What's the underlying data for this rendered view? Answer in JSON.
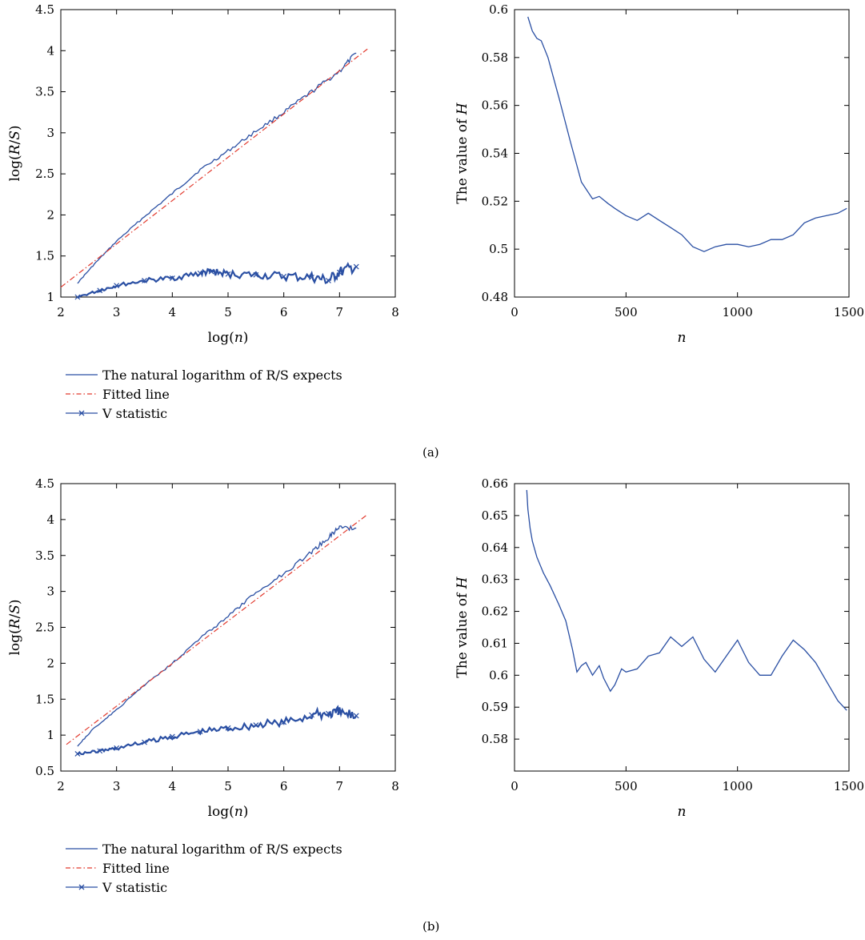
{
  "legend": {
    "rs": "The natural logarithm of R/S expects",
    "fitted": "Fitted line",
    "v": "V statistic"
  },
  "colors": {
    "blue": "#2a4fa3",
    "red": "#e23a2e"
  },
  "captions": {
    "a": "(a)",
    "b": "(b)"
  },
  "chart_data": [
    {
      "id": "a-left",
      "type": "line",
      "xlabel": "log(n)",
      "ylabel": "log(R/S)",
      "xlim": [
        2,
        8
      ],
      "ylim": [
        1,
        4.5
      ],
      "xticks": [
        "2",
        "3",
        "4",
        "5",
        "6",
        "7",
        "8"
      ],
      "yticks": [
        "1",
        "1.5",
        "2",
        "2.5",
        "3",
        "3.5",
        "4",
        "4.5"
      ],
      "series": [
        {
          "name": "The natural logarithm of R/S expects",
          "x": [
            2.3,
            2.6,
            3.0,
            3.5,
            4.0,
            4.5,
            5.0,
            5.5,
            6.0,
            6.5,
            7.0,
            7.3
          ],
          "y": [
            1.17,
            1.4,
            1.68,
            1.98,
            2.26,
            2.55,
            2.78,
            3.02,
            3.25,
            3.5,
            3.75,
            3.97
          ]
        },
        {
          "name": "Fitted line",
          "x": [
            2.0,
            7.5
          ],
          "y": [
            1.12,
            4.02
          ]
        },
        {
          "name": "V statistic",
          "x": [
            2.3,
            2.7,
            3.0,
            3.5,
            4.0,
            4.5,
            4.7,
            5.0,
            5.5,
            6.0,
            6.5,
            6.8,
            7.0,
            7.3
          ],
          "y": [
            1.0,
            1.08,
            1.14,
            1.2,
            1.23,
            1.29,
            1.31,
            1.28,
            1.27,
            1.25,
            1.24,
            1.2,
            1.3,
            1.37
          ]
        }
      ]
    },
    {
      "id": "a-right",
      "type": "line",
      "xlabel": "n",
      "ylabel": "The value of H",
      "xlim": [
        0,
        1500
      ],
      "ylim": [
        0.48,
        0.6
      ],
      "xticks": [
        "0",
        "500",
        "1000",
        "1500"
      ],
      "yticks": [
        "0.48",
        "0.5",
        "0.52",
        "0.54",
        "0.56",
        "0.58",
        "0.6"
      ],
      "series": [
        {
          "name": "H",
          "x": [
            60,
            80,
            100,
            120,
            150,
            200,
            250,
            300,
            350,
            380,
            420,
            450,
            500,
            550,
            600,
            650,
            700,
            750,
            800,
            850,
            900,
            950,
            1000,
            1050,
            1100,
            1150,
            1200,
            1250,
            1300,
            1350,
            1400,
            1450,
            1490
          ],
          "y": [
            0.597,
            0.591,
            0.588,
            0.587,
            0.58,
            0.563,
            0.545,
            0.528,
            0.521,
            0.522,
            0.519,
            0.517,
            0.514,
            0.512,
            0.515,
            0.512,
            0.509,
            0.506,
            0.501,
            0.499,
            0.501,
            0.502,
            0.502,
            0.501,
            0.502,
            0.504,
            0.504,
            0.506,
            0.511,
            0.513,
            0.514,
            0.515,
            0.517
          ]
        }
      ]
    },
    {
      "id": "b-left",
      "type": "line",
      "xlabel": "log(n)",
      "ylabel": "log(R/S)",
      "xlim": [
        2,
        8
      ],
      "ylim": [
        0.5,
        4.5
      ],
      "xticks": [
        "2",
        "3",
        "4",
        "5",
        "6",
        "7",
        "8"
      ],
      "yticks": [
        "0.5",
        "1",
        "1.5",
        "2",
        "2.5",
        "3",
        "3.5",
        "4",
        "4.5"
      ],
      "series": [
        {
          "name": "The natural logarithm of R/S expects",
          "x": [
            2.3,
            2.6,
            3.0,
            3.5,
            4.0,
            4.5,
            5.0,
            5.5,
            6.0,
            6.5,
            6.8,
            7.0,
            7.3
          ],
          "y": [
            0.85,
            1.1,
            1.35,
            1.7,
            2.0,
            2.35,
            2.65,
            2.98,
            3.25,
            3.55,
            3.75,
            3.9,
            3.88
          ]
        },
        {
          "name": "Fitted line",
          "x": [
            2.1,
            7.5
          ],
          "y": [
            0.87,
            4.07
          ]
        },
        {
          "name": "V statistic",
          "x": [
            2.3,
            2.7,
            3.0,
            3.5,
            4.0,
            4.5,
            5.0,
            5.5,
            6.0,
            6.5,
            6.8,
            7.0,
            7.3
          ],
          "y": [
            0.74,
            0.78,
            0.82,
            0.9,
            0.98,
            1.05,
            1.1,
            1.14,
            1.18,
            1.28,
            1.3,
            1.32,
            1.27
          ]
        }
      ]
    },
    {
      "id": "b-right",
      "type": "line",
      "xlabel": "n",
      "ylabel": "The value of H",
      "xlim": [
        0,
        1500
      ],
      "ylim": [
        0.57,
        0.66
      ],
      "xticks": [
        "0",
        "500",
        "1000",
        "1500"
      ],
      "yticks": [
        "0.58",
        "0.59",
        "0.6",
        "0.61",
        "0.62",
        "0.63",
        "0.64",
        "0.65",
        "0.66"
      ],
      "series": [
        {
          "name": "H",
          "x": [
            55,
            60,
            70,
            80,
            100,
            130,
            160,
            200,
            230,
            260,
            280,
            300,
            320,
            350,
            380,
            400,
            430,
            450,
            480,
            500,
            550,
            600,
            650,
            700,
            750,
            800,
            850,
            900,
            950,
            1000,
            1050,
            1100,
            1150,
            1200,
            1250,
            1300,
            1350,
            1400,
            1450,
            1490
          ],
          "y": [
            0.658,
            0.652,
            0.646,
            0.642,
            0.637,
            0.632,
            0.628,
            0.622,
            0.617,
            0.608,
            0.601,
            0.603,
            0.604,
            0.6,
            0.603,
            0.599,
            0.595,
            0.597,
            0.602,
            0.601,
            0.602,
            0.606,
            0.607,
            0.612,
            0.609,
            0.612,
            0.605,
            0.601,
            0.606,
            0.611,
            0.604,
            0.6,
            0.6,
            0.606,
            0.611,
            0.608,
            0.604,
            0.598,
            0.592,
            0.589
          ]
        }
      ]
    }
  ]
}
